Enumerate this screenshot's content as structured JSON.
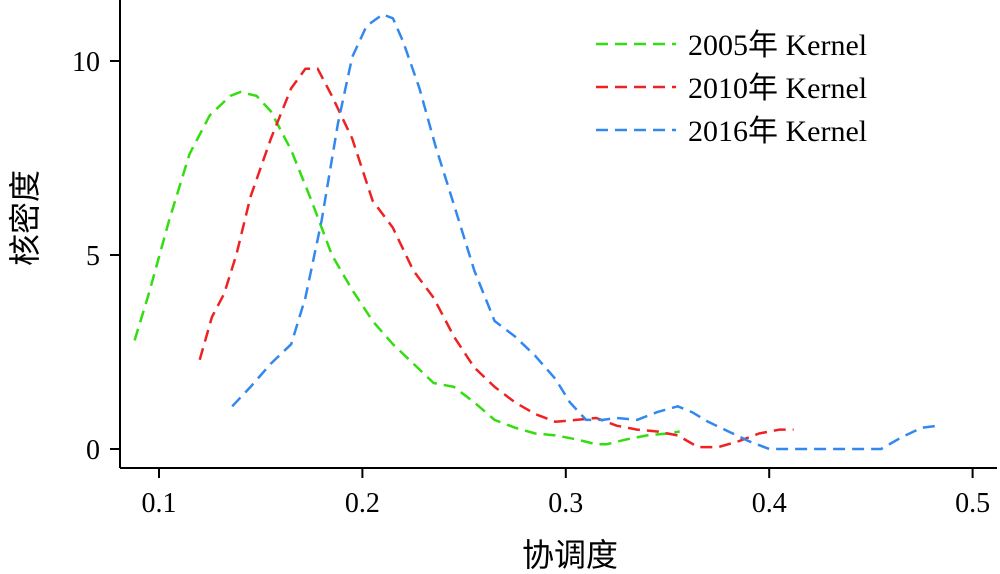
{
  "chart_data": {
    "type": "line",
    "xlabel": "协调度",
    "ylabel": "核密度",
    "xlim": [
      0.08,
      0.5
    ],
    "ylim": [
      0,
      11.4
    ],
    "xticks": [
      0.1,
      0.2,
      0.3,
      0.4,
      0.5
    ],
    "xtick_labels": [
      "0.1",
      "0.2",
      "0.3",
      "0.4",
      "0.5"
    ],
    "yticks": [
      0,
      5,
      10
    ],
    "ytick_labels": [
      "0",
      "5",
      "10"
    ],
    "grid": false,
    "legend_position": "top-right",
    "series": [
      {
        "name": "2005年 Kernel",
        "color": "#33dd11",
        "x": [
          0.088,
          0.095,
          0.105,
          0.115,
          0.125,
          0.135,
          0.14,
          0.148,
          0.155,
          0.165,
          0.175,
          0.185,
          0.195,
          0.205,
          0.215,
          0.225,
          0.235,
          0.245,
          0.255,
          0.265,
          0.275,
          0.285,
          0.295,
          0.305,
          0.315,
          0.32,
          0.33,
          0.34,
          0.35,
          0.356
        ],
        "y": [
          2.8,
          4.0,
          5.9,
          7.6,
          8.6,
          9.1,
          9.2,
          9.1,
          8.7,
          7.7,
          6.4,
          5.0,
          4.1,
          3.3,
          2.7,
          2.2,
          1.7,
          1.6,
          1.2,
          0.75,
          0.55,
          0.4,
          0.35,
          0.25,
          0.12,
          0.12,
          0.25,
          0.35,
          0.4,
          0.45
        ]
      },
      {
        "name": "2010年 Kernel",
        "color": "#ee2222",
        "x": [
          0.12,
          0.126,
          0.132,
          0.138,
          0.145,
          0.155,
          0.165,
          0.172,
          0.178,
          0.185,
          0.195,
          0.205,
          0.215,
          0.225,
          0.235,
          0.245,
          0.255,
          0.265,
          0.275,
          0.285,
          0.295,
          0.305,
          0.315,
          0.325,
          0.335,
          0.345,
          0.355,
          0.365,
          0.375,
          0.385,
          0.395,
          0.405,
          0.412
        ],
        "y": [
          2.3,
          3.4,
          4.0,
          5.0,
          6.5,
          8.0,
          9.3,
          9.8,
          9.8,
          9.1,
          8.0,
          6.4,
          5.7,
          4.6,
          3.9,
          2.9,
          2.1,
          1.6,
          1.2,
          0.9,
          0.7,
          0.75,
          0.8,
          0.6,
          0.5,
          0.45,
          0.35,
          0.05,
          0.05,
          0.2,
          0.4,
          0.5,
          0.5
        ]
      },
      {
        "name": "2016年 Kernel",
        "color": "#3388ee",
        "x": [
          0.136,
          0.145,
          0.155,
          0.165,
          0.172,
          0.18,
          0.188,
          0.195,
          0.202,
          0.21,
          0.215,
          0.22,
          0.228,
          0.236,
          0.245,
          0.255,
          0.265,
          0.275,
          0.285,
          0.295,
          0.302,
          0.31,
          0.318,
          0.325,
          0.335,
          0.345,
          0.355,
          0.362,
          0.37,
          0.38,
          0.39,
          0.4,
          0.42,
          0.44,
          0.455,
          0.465,
          0.475,
          0.483
        ],
        "y": [
          1.1,
          1.6,
          2.2,
          2.7,
          3.9,
          5.9,
          8.4,
          10.1,
          10.9,
          11.2,
          11.1,
          10.5,
          9.3,
          7.8,
          6.3,
          4.6,
          3.3,
          2.9,
          2.4,
          1.8,
          1.2,
          0.75,
          0.75,
          0.8,
          0.75,
          0.95,
          1.1,
          0.95,
          0.7,
          0.45,
          0.2,
          0.0,
          0.0,
          0.0,
          0.0,
          0.3,
          0.55,
          0.6
        ]
      }
    ]
  }
}
